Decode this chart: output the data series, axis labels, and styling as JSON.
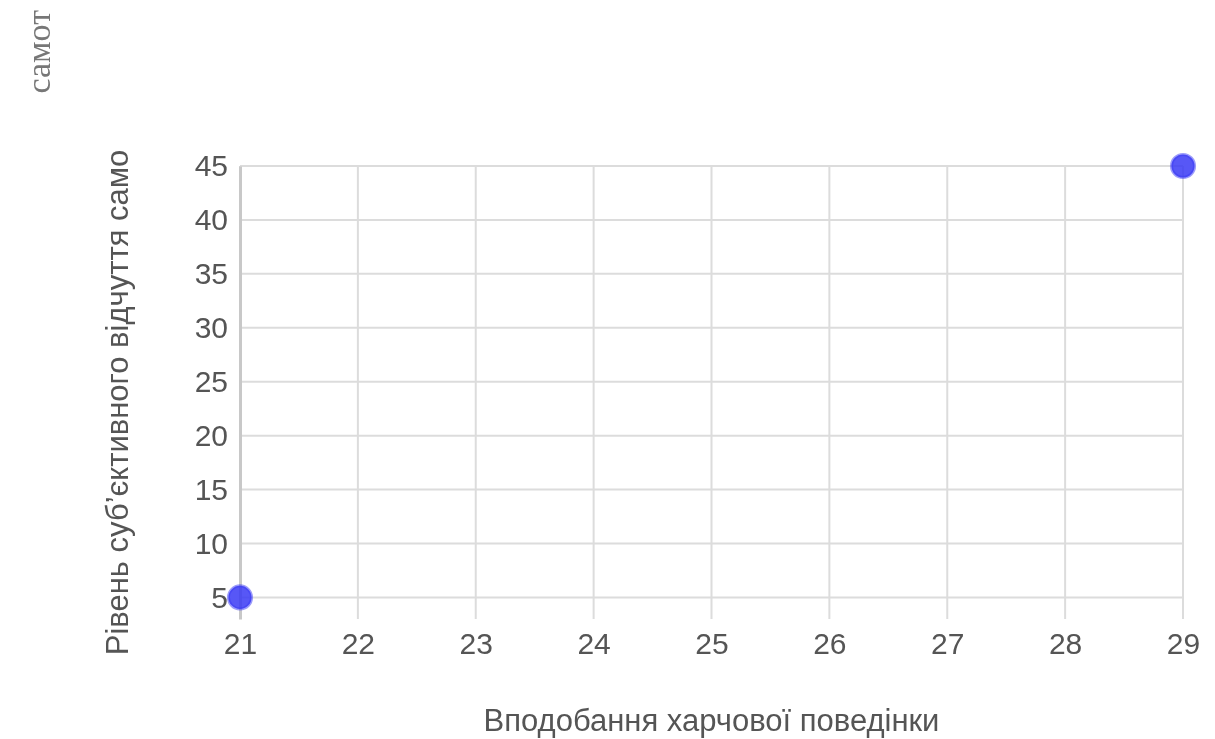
{
  "chart_data": {
    "type": "scatter",
    "xlabel": "Вподобання харчової поведінки",
    "ylabel": "Рівень суб’єктивного відчуття само",
    "annotations": [
      "самот"
    ],
    "x": [
      21,
      29
    ],
    "series": [
      {
        "color": "#3a3af5",
        "values": [
          5,
          45
        ]
      }
    ],
    "xlim": [
      21,
      29
    ],
    "xticks": [
      21,
      22,
      23,
      24,
      25,
      26,
      27,
      28,
      29
    ],
    "ylim": [
      3,
      45
    ],
    "yticks": [
      5,
      10,
      15,
      20,
      25,
      30,
      35,
      40,
      45
    ],
    "grid": true,
    "marker": "circle"
  }
}
